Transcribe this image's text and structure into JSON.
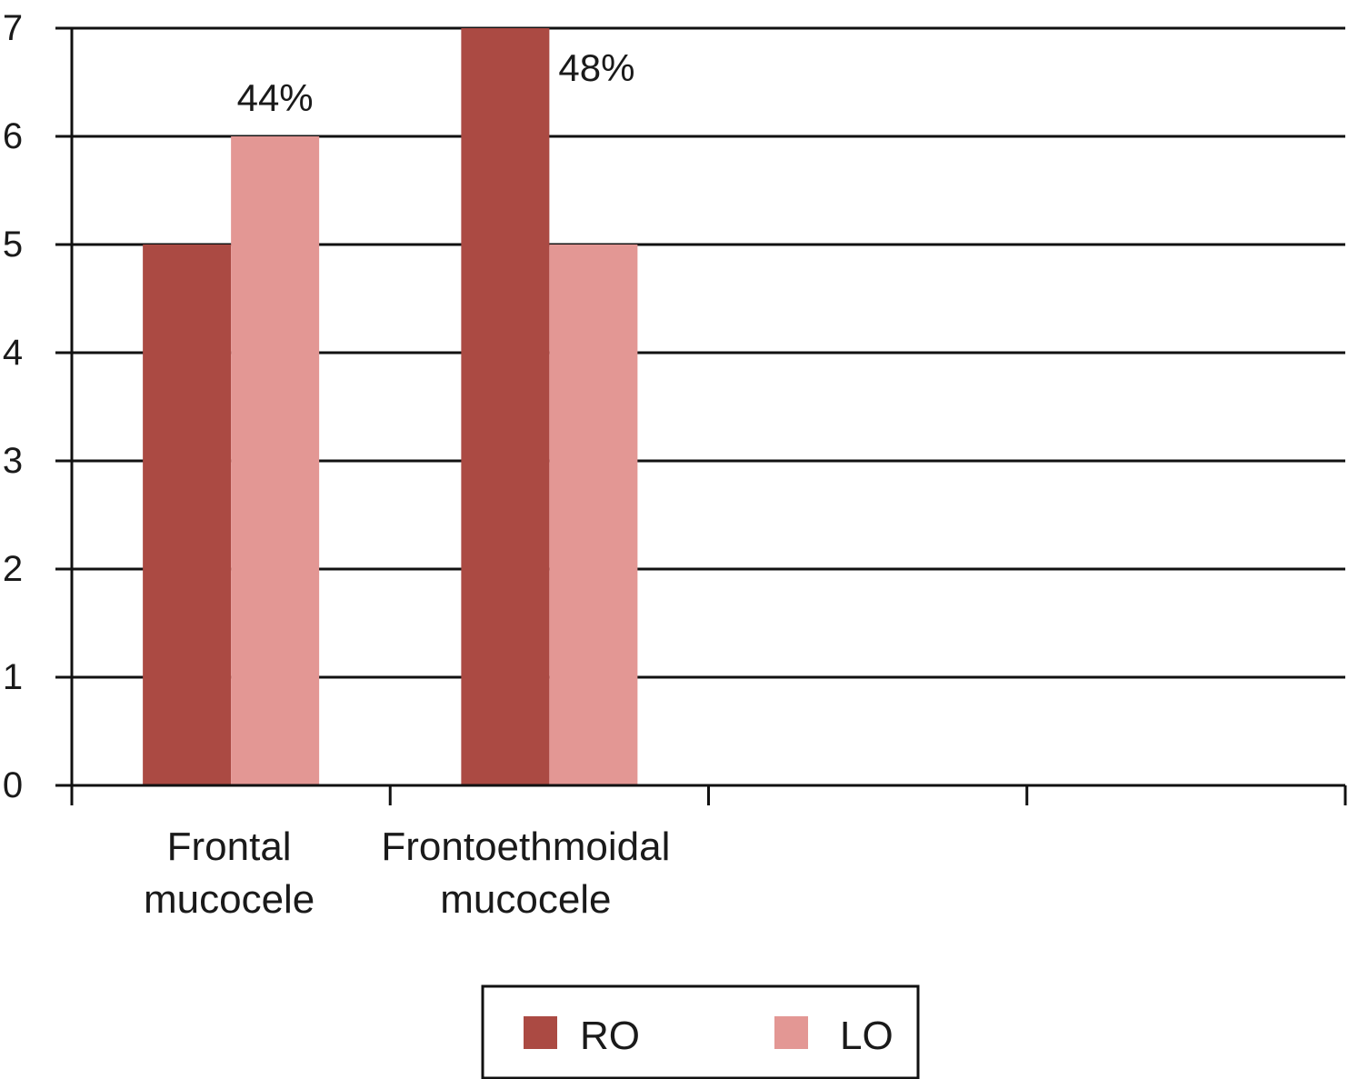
{
  "chart_data": {
    "type": "bar",
    "categories": [
      [
        "Frontal",
        "mucocele"
      ],
      [
        "Frontoethmoidal",
        "mucocele"
      ],
      [
        "",
        ""
      ],
      [
        "",
        ""
      ]
    ],
    "series": [
      {
        "name": "RO",
        "color": "#ab4a43",
        "values": [
          5,
          7,
          null,
          null
        ]
      },
      {
        "name": "LO",
        "color": "#e39794",
        "values": [
          6,
          5,
          null,
          null
        ]
      }
    ],
    "data_labels": [
      {
        "category": 0,
        "series": 1,
        "text": "44%"
      },
      {
        "category": 1,
        "series": 0,
        "text": "48%"
      }
    ],
    "yticks": [
      "0",
      "1",
      "2",
      "3",
      "4",
      "5",
      "6",
      "7"
    ],
    "ylim": [
      0,
      7
    ],
    "grid": true,
    "legend_position": "bottom"
  }
}
